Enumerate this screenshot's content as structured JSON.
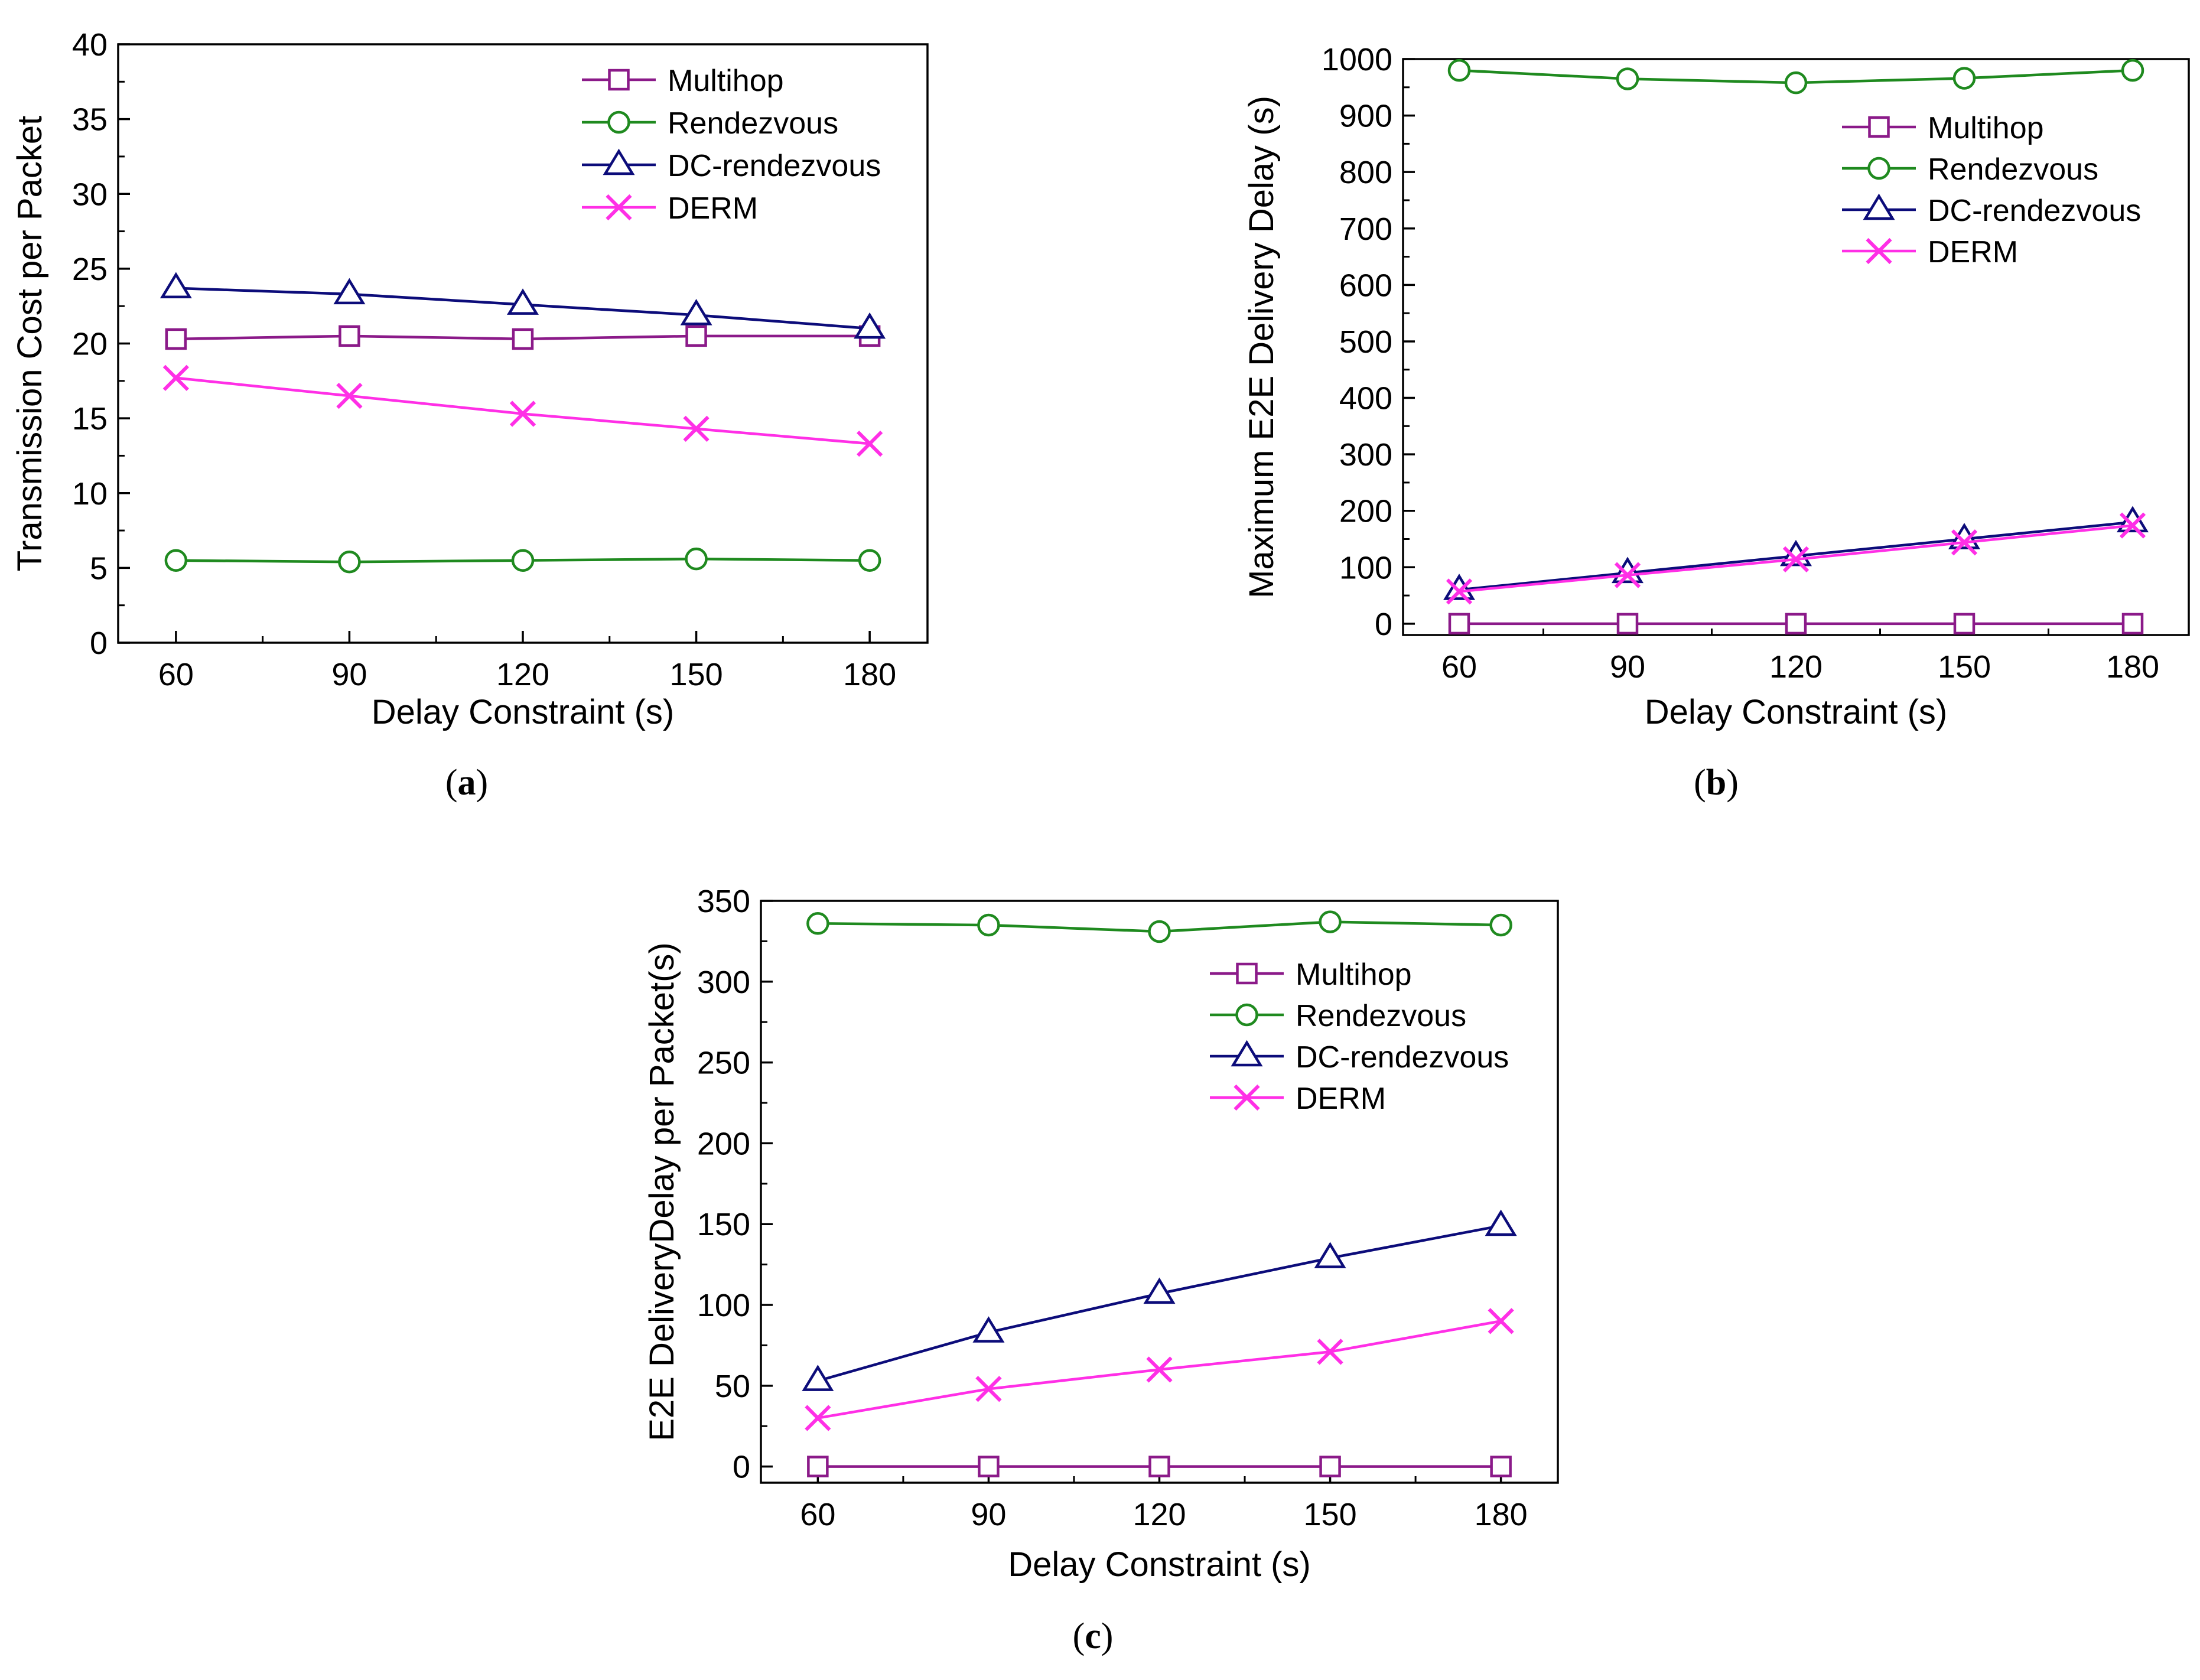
{
  "colors": {
    "Multihop": "#8b1a89",
    "Rendezvous": "#1f8a1f",
    "DC-rendezvous": "#0c0c7a",
    "DERM": "#ff2fe6"
  },
  "chart_data": [
    {
      "id": "a",
      "type": "line",
      "caption_label": "a",
      "xlabel": "Delay Constraint (s)",
      "ylabel": "Transmission Cost per Packet",
      "x": [
        60,
        90,
        120,
        150,
        180
      ],
      "xticks": [
        "60",
        "90",
        "120",
        "150",
        "180"
      ],
      "xlim": [
        50,
        190
      ],
      "ylim": [
        0,
        40
      ],
      "yticks": [
        "0",
        "5",
        "10",
        "15",
        "20",
        "25",
        "30",
        "35",
        "40"
      ],
      "legend_position": "top-right",
      "series": [
        {
          "name": "Multihop",
          "marker": "square",
          "values": [
            20.3,
            20.5,
            20.3,
            20.5,
            20.5
          ]
        },
        {
          "name": "Rendezvous",
          "marker": "circle",
          "values": [
            5.5,
            5.4,
            5.5,
            5.6,
            5.5
          ]
        },
        {
          "name": "DC-rendezvous",
          "marker": "triangle",
          "values": [
            23.7,
            23.3,
            22.6,
            21.9,
            21.0
          ]
        },
        {
          "name": "DERM",
          "marker": "x",
          "values": [
            17.7,
            16.5,
            15.3,
            14.3,
            13.3
          ]
        }
      ]
    },
    {
      "id": "b",
      "type": "line",
      "caption_label": "b",
      "xlabel": "Delay Constraint (s)",
      "ylabel": "Maximum E2E Delivery Delay (s)",
      "x": [
        60,
        90,
        120,
        150,
        180
      ],
      "xticks": [
        "60",
        "90",
        "120",
        "150",
        "180"
      ],
      "xlim": [
        50,
        190
      ],
      "ylim": [
        -20,
        1000
      ],
      "yticks": [
        "0",
        "100",
        "200",
        "300",
        "400",
        "500",
        "600",
        "700",
        "800",
        "900",
        "1000"
      ],
      "legend_position": "top-right",
      "series": [
        {
          "name": "Multihop",
          "marker": "square",
          "values": [
            0,
            0,
            0,
            0,
            0
          ]
        },
        {
          "name": "Rendezvous",
          "marker": "circle",
          "values": [
            980,
            965,
            958,
            966,
            980
          ]
        },
        {
          "name": "DC-rendezvous",
          "marker": "triangle",
          "values": [
            60,
            90,
            120,
            150,
            180
          ]
        },
        {
          "name": "DERM",
          "marker": "x",
          "values": [
            57,
            86,
            114,
            144,
            174
          ]
        }
      ]
    },
    {
      "id": "c",
      "type": "line",
      "caption_label": "c",
      "xlabel": "Delay Constraint (s)",
      "ylabel": "E2E DeliveryDelay per Packet(s)",
      "x": [
        60,
        90,
        120,
        150,
        180
      ],
      "xticks": [
        "60",
        "90",
        "120",
        "150",
        "180"
      ],
      "xlim": [
        50,
        190
      ],
      "ylim": [
        -10,
        350
      ],
      "yticks": [
        "0",
        "50",
        "100",
        "150",
        "200",
        "250",
        "300",
        "350"
      ],
      "legend_position": "top-right",
      "series": [
        {
          "name": "Multihop",
          "marker": "square",
          "values": [
            0,
            0,
            0,
            0,
            0
          ]
        },
        {
          "name": "Rendezvous",
          "marker": "circle",
          "values": [
            336,
            335,
            331,
            337,
            335
          ]
        },
        {
          "name": "DC-rendezvous",
          "marker": "triangle",
          "values": [
            53,
            83,
            107,
            129,
            149
          ]
        },
        {
          "name": "DERM",
          "marker": "x",
          "values": [
            30,
            48,
            60,
            71,
            90
          ]
        }
      ]
    }
  ]
}
